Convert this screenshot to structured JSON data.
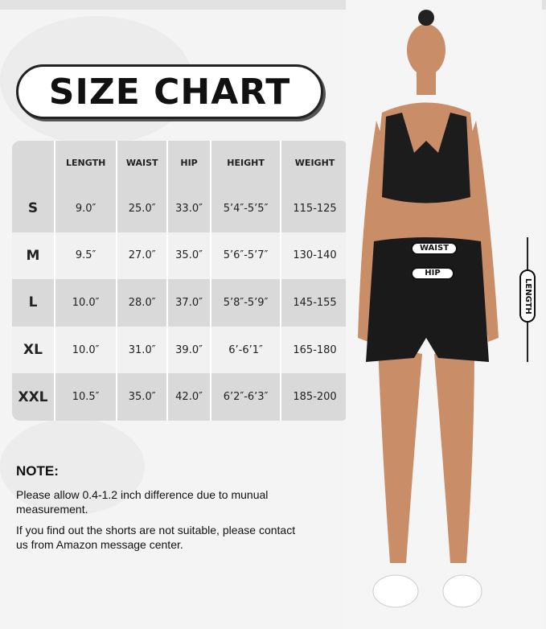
{
  "title": "SIZE CHART",
  "table": {
    "headers": [
      "",
      "LENGTH",
      "WAIST",
      "HIP",
      "HEIGHT",
      "WEIGHT"
    ],
    "rows": [
      [
        "S",
        "9.0″",
        "25.0″",
        "33.0″",
        "5’4″-5’5″",
        "115-125"
      ],
      [
        "M",
        "9.5″",
        "27.0″",
        "35.0″",
        "5’6″-5’7″",
        "130-140"
      ],
      [
        "L",
        "10.0″",
        "28.0″",
        "37.0″",
        "5’8″-5’9″",
        "145-155"
      ],
      [
        "XL",
        "10.0″",
        "31.0″",
        "39.0″",
        "6’-6’1″",
        "165-180"
      ],
      [
        "XXL",
        "10.5″",
        "35.0″",
        "42.0″",
        "6’2″-6’3″",
        "185-200"
      ]
    ]
  },
  "note": {
    "heading": "NOTE:",
    "lines": [
      "Please allow 0.4-1.2 inch difference due to munual measurement.",
      "If you find out the shorts are not suitable, please contact us from Amazon message center."
    ]
  },
  "labels": {
    "waist": "WAIST",
    "hip": "HIP",
    "length": "LENGTH"
  }
}
